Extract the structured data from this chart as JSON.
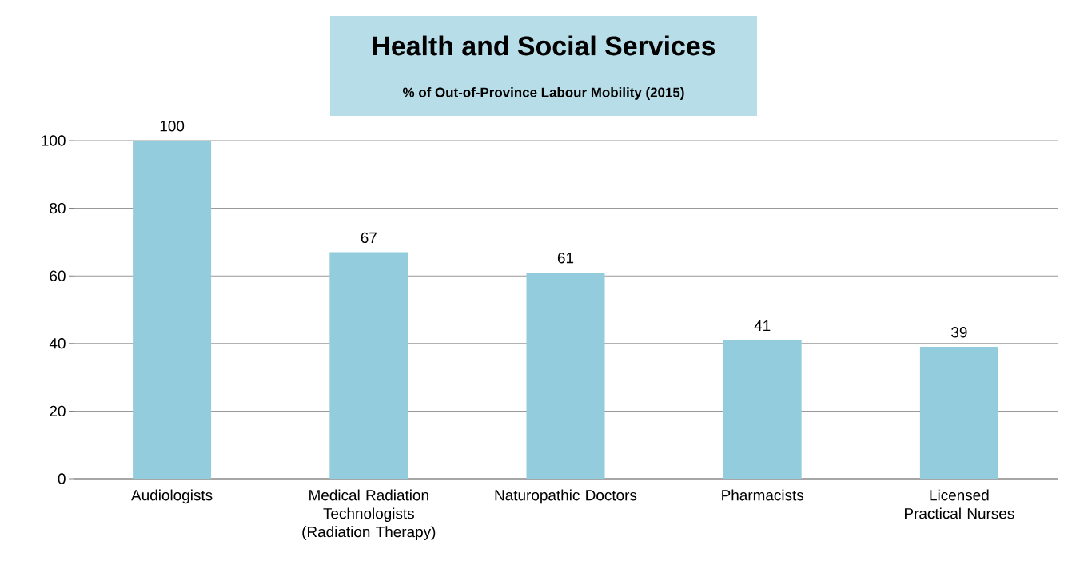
{
  "chart_data": {
    "type": "bar",
    "title": "Health and Social Services",
    "subtitle": "% of Out-of-Province Labour Mobility (2015)",
    "categories": [
      "Audiologists",
      "Medical Radiation Technologists (Radiation Therapy)",
      "Naturopathic Doctors",
      "Pharmacists",
      "Licensed Practical Nurses"
    ],
    "values": [
      100,
      67,
      61,
      41,
      39
    ],
    "color": "#93cddd",
    "ylim": [
      0,
      100
    ],
    "yticks": [
      0,
      20,
      40,
      60,
      80,
      100
    ],
    "grid": "y",
    "data_labels": true
  }
}
